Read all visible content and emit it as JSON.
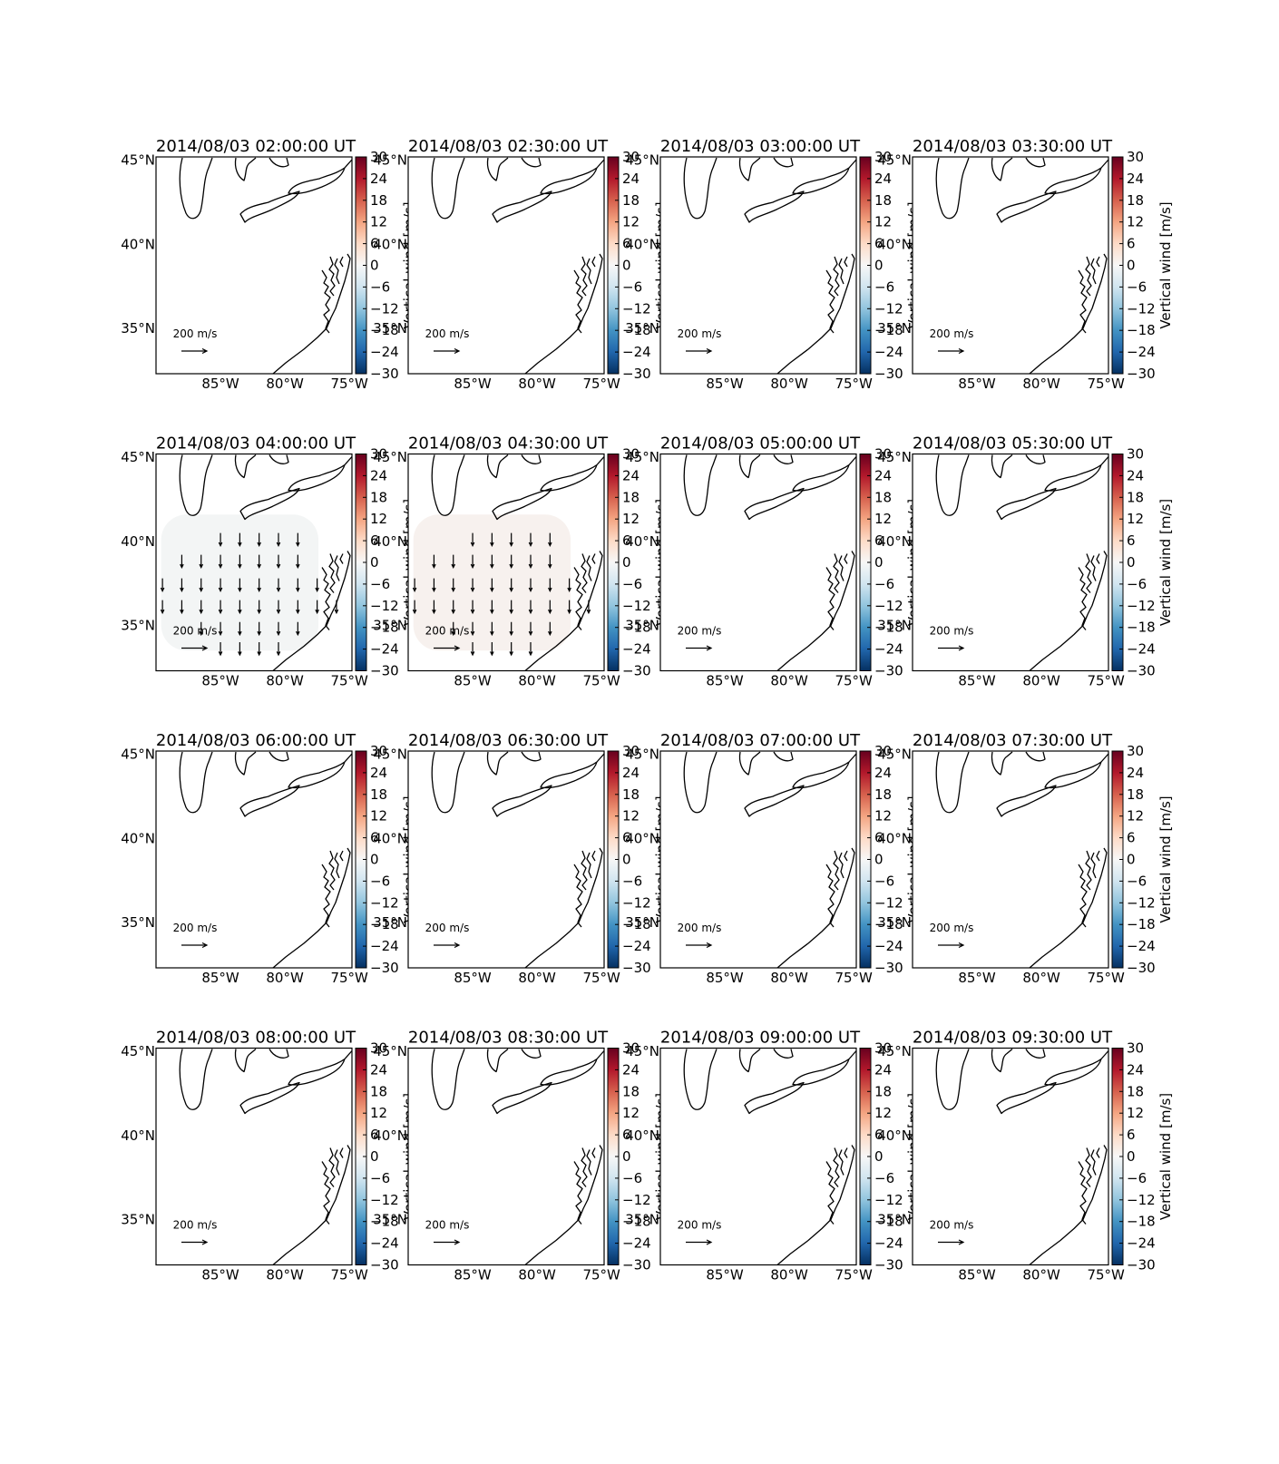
{
  "map": {
    "xlim": [
      -90,
      -74.8
    ],
    "ylim": [
      32.3,
      45.2
    ],
    "xticks": [
      {
        "value": -85,
        "label": "85°W"
      },
      {
        "value": -80,
        "label": "80°W"
      },
      {
        "value": -75,
        "label": "75°W"
      }
    ],
    "yticks": [
      {
        "value": 35,
        "label": "35°N"
      },
      {
        "value": 40,
        "label": "40°N"
      },
      {
        "value": 45,
        "label": "45°N"
      }
    ]
  },
  "colorbar": {
    "label": "Vertical wind [m/s]",
    "lim": [
      -30,
      30
    ],
    "ticks": [
      {
        "value": -30,
        "label": "−30"
      },
      {
        "value": -24,
        "label": "−24"
      },
      {
        "value": -18,
        "label": "−18"
      },
      {
        "value": -12,
        "label": "−12"
      },
      {
        "value": -6,
        "label": "−6"
      },
      0,
      6,
      12,
      18,
      24,
      30
    ],
    "colormap": [
      "#053061",
      "#2166ac",
      "#4393c3",
      "#92c5de",
      "#d1e5f0",
      "#f7f7f7",
      "#fddbc7",
      "#f4a582",
      "#d6604d",
      "#b2182b",
      "#67001f"
    ]
  },
  "quiver_key": {
    "value": 200,
    "label": "200 m/s"
  },
  "panels": [
    {
      "title": "2014/08/03 02:00:00 UT"
    },
    {
      "title": "2014/08/03 02:30:00 UT"
    },
    {
      "title": "2014/08/03 03:00:00 UT"
    },
    {
      "title": "2014/08/03 03:30:00 UT"
    },
    {
      "title": "2014/08/03 04:00:00 UT",
      "shade": {
        "color": "#f3f5f5",
        "lonlim": [
          -89.6,
          -77.4
        ],
        "latlim": [
          33.5,
          41.6
        ]
      },
      "wind": {
        "u": 0,
        "v": -100,
        "points": [
          [
            -85,
            40.5
          ],
          [
            -83.5,
            40.5
          ],
          [
            -82,
            40.5
          ],
          [
            -80.5,
            40.5
          ],
          [
            -79,
            40.5
          ],
          [
            -88,
            39.2
          ],
          [
            -86.5,
            39.2
          ],
          [
            -85,
            39.2
          ],
          [
            -83.5,
            39.2
          ],
          [
            -82,
            39.2
          ],
          [
            -80.5,
            39.2
          ],
          [
            -79,
            39.2
          ],
          [
            -89.5,
            37.8
          ],
          [
            -88,
            37.8
          ],
          [
            -86.5,
            37.8
          ],
          [
            -85,
            37.8
          ],
          [
            -83.5,
            37.8
          ],
          [
            -82,
            37.8
          ],
          [
            -80.5,
            37.8
          ],
          [
            -79,
            37.8
          ],
          [
            -77.5,
            37.8
          ],
          [
            -89.5,
            36.5
          ],
          [
            -88,
            36.5
          ],
          [
            -86.5,
            36.5
          ],
          [
            -85,
            36.5
          ],
          [
            -83.5,
            36.5
          ],
          [
            -82,
            36.5
          ],
          [
            -80.5,
            36.5
          ],
          [
            -79,
            36.5
          ],
          [
            -77.5,
            36.5
          ],
          [
            -76,
            36.5
          ],
          [
            -86.5,
            35.2
          ],
          [
            -85,
            35.2
          ],
          [
            -83.5,
            35.2
          ],
          [
            -82,
            35.2
          ],
          [
            -80.5,
            35.2
          ],
          [
            -79,
            35.2
          ],
          [
            -85,
            34
          ],
          [
            -83.5,
            34
          ],
          [
            -82,
            34
          ],
          [
            -80.5,
            34
          ]
        ]
      }
    },
    {
      "title": "2014/08/03 04:30:00 UT",
      "shade": {
        "color": "#f7f1ee",
        "lonlim": [
          -89.6,
          -77.4
        ],
        "latlim": [
          33.5,
          41.6
        ]
      },
      "wind": {
        "u": 0,
        "v": -100,
        "points": [
          [
            -85,
            40.5
          ],
          [
            -83.5,
            40.5
          ],
          [
            -82,
            40.5
          ],
          [
            -80.5,
            40.5
          ],
          [
            -79,
            40.5
          ],
          [
            -88,
            39.2
          ],
          [
            -86.5,
            39.2
          ],
          [
            -85,
            39.2
          ],
          [
            -83.5,
            39.2
          ],
          [
            -82,
            39.2
          ],
          [
            -80.5,
            39.2
          ],
          [
            -79,
            39.2
          ],
          [
            -89.5,
            37.8
          ],
          [
            -88,
            37.8
          ],
          [
            -86.5,
            37.8
          ],
          [
            -85,
            37.8
          ],
          [
            -83.5,
            37.8
          ],
          [
            -82,
            37.8
          ],
          [
            -80.5,
            37.8
          ],
          [
            -79,
            37.8
          ],
          [
            -77.5,
            37.8
          ],
          [
            -89.5,
            36.5
          ],
          [
            -88,
            36.5
          ],
          [
            -86.5,
            36.5
          ],
          [
            -85,
            36.5
          ],
          [
            -83.5,
            36.5
          ],
          [
            -82,
            36.5
          ],
          [
            -80.5,
            36.5
          ],
          [
            -79,
            36.5
          ],
          [
            -77.5,
            36.5
          ],
          [
            -76,
            36.5
          ],
          [
            -86.5,
            35.2
          ],
          [
            -85,
            35.2
          ],
          [
            -83.5,
            35.2
          ],
          [
            -82,
            35.2
          ],
          [
            -80.5,
            35.2
          ],
          [
            -79,
            35.2
          ],
          [
            -85,
            34
          ],
          [
            -83.5,
            34
          ],
          [
            -82,
            34
          ],
          [
            -80.5,
            34
          ]
        ]
      }
    },
    {
      "title": "2014/08/03 05:00:00 UT"
    },
    {
      "title": "2014/08/03 05:30:00 UT"
    },
    {
      "title": "2014/08/03 06:00:00 UT"
    },
    {
      "title": "2014/08/03 06:30:00 UT"
    },
    {
      "title": "2014/08/03 07:00:00 UT"
    },
    {
      "title": "2014/08/03 07:30:00 UT"
    },
    {
      "title": "2014/08/03 08:00:00 UT"
    },
    {
      "title": "2014/08/03 08:30:00 UT"
    },
    {
      "title": "2014/08/03 09:00:00 UT"
    },
    {
      "title": "2014/08/03 09:30:00 UT"
    }
  ]
}
